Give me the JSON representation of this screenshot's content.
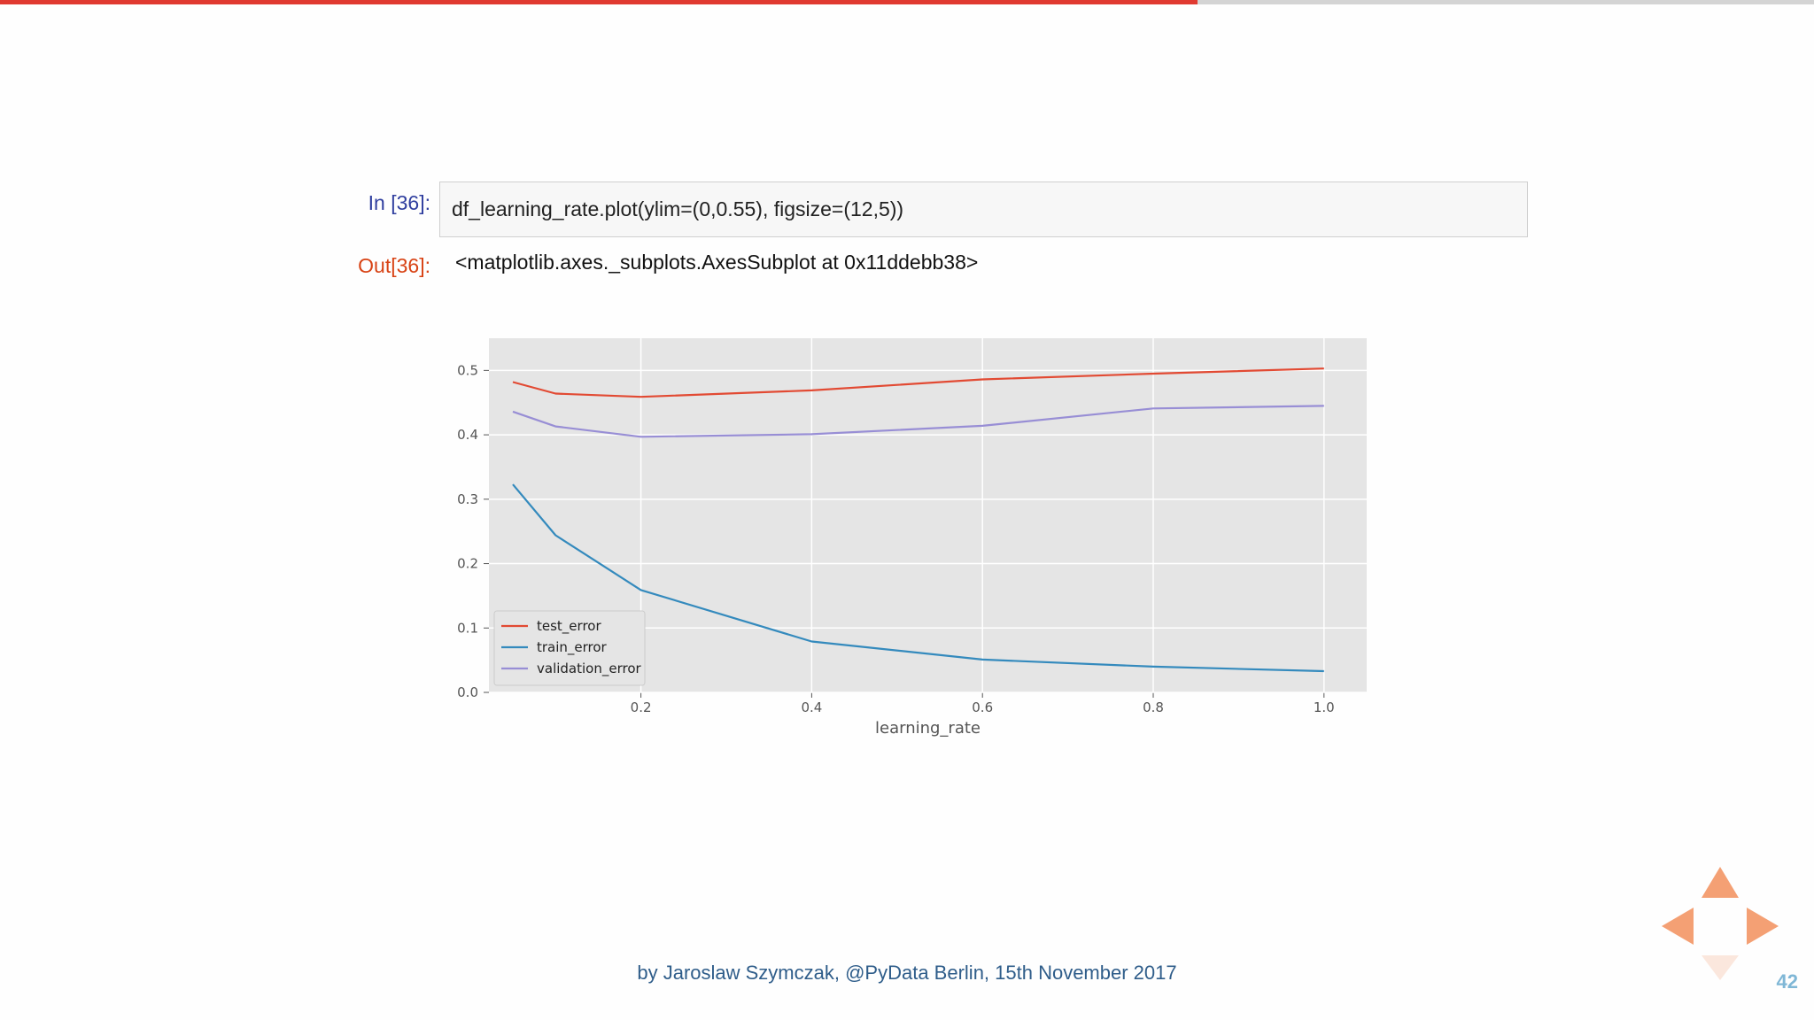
{
  "slide": {
    "progress": 0.66,
    "footer": "by Jaroslaw Szymczak, @PyData Berlin, 15th November 2017",
    "number": "42"
  },
  "notebook": {
    "in_prompt": "In [36]:",
    "code": "df_learning_rate.plot(ylim=(0,0.55), figsize=(12,5))",
    "out_prompt": "Out[36]:",
    "output": "<matplotlib.axes._subplots.AxesSubplot at 0x11ddebb38>"
  },
  "colors": {
    "progress": "#e03a31",
    "test_error": "#e24a33",
    "train_error": "#348abd",
    "validation_error": "#988ed5",
    "plot_bg": "#e5e5e5",
    "grid": "#ffffff"
  },
  "chart_data": {
    "type": "line",
    "title": "",
    "xlabel": "learning_rate",
    "ylabel": "",
    "x": [
      0.05,
      0.1,
      0.2,
      0.4,
      0.6,
      0.8,
      1.0
    ],
    "xlim": [
      0.022,
      1.05
    ],
    "ylim": [
      0,
      0.55
    ],
    "xticks": [
      0.2,
      0.4,
      0.6,
      0.8,
      1.0
    ],
    "xtick_labels": [
      "0.2",
      "0.4",
      "0.6",
      "0.8",
      "1.0"
    ],
    "yticks": [
      0.0,
      0.1,
      0.2,
      0.3,
      0.4,
      0.5
    ],
    "ytick_labels": [
      "0.0",
      "0.1",
      "0.2",
      "0.3",
      "0.4",
      "0.5"
    ],
    "grid": true,
    "legend": "lower-left",
    "series": [
      {
        "name": "test_error",
        "values": [
          0.482,
          0.464,
          0.459,
          0.469,
          0.486,
          0.495,
          0.503
        ]
      },
      {
        "name": "train_error",
        "values": [
          0.323,
          0.244,
          0.159,
          0.079,
          0.051,
          0.04,
          0.033
        ]
      },
      {
        "name": "validation_error",
        "values": [
          0.436,
          0.413,
          0.397,
          0.401,
          0.414,
          0.441,
          0.445
        ]
      }
    ]
  }
}
